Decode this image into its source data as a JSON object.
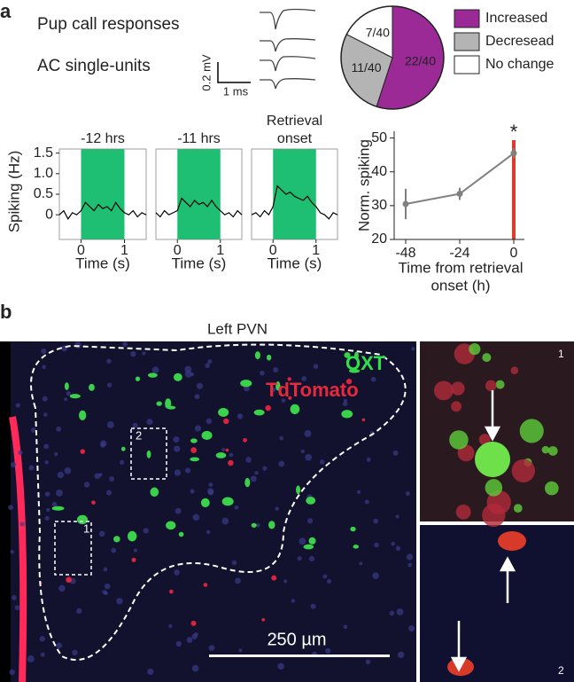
{
  "panel_a": {
    "label": "a",
    "line1": "Pup call responses",
    "line2": "AC single-units",
    "scale_y": "0.2 mV",
    "scale_x": "1 ms"
  },
  "chart_data": [
    {
      "type": "pie",
      "categories": [
        "Increased",
        "Decresead",
        "No change"
      ],
      "values": [
        22,
        11,
        7
      ],
      "value_labels": [
        "22/40",
        "11/40",
        "7/40"
      ],
      "colors": [
        "#9b2a96",
        "#b4b4b4",
        "#ffffff"
      ]
    },
    {
      "type": "line",
      "title_lines": [
        "-12 hrs"
      ],
      "ylabel": "Spiking (Hz)",
      "xlabel": "Time (s)",
      "x": [
        -0.5,
        -0.4,
        -0.3,
        -0.2,
        -0.1,
        0,
        0.1,
        0.2,
        0.3,
        0.4,
        0.5,
        0.6,
        0.7,
        0.8,
        0.9,
        1,
        1.1,
        1.2,
        1.3,
        1.4,
        1.5
      ],
      "series": [
        {
          "color": "#000000",
          "values": [
            0,
            0.1,
            -0.1,
            0.05,
            0,
            0.1,
            0.3,
            0.2,
            0.1,
            0.25,
            0.15,
            0.2,
            0.1,
            0.3,
            0.15,
            0.05,
            0,
            0.1,
            -0.05,
            0.05,
            0
          ]
        }
      ],
      "stimulus_window": [
        0,
        1
      ],
      "stimulus_color": "#1fbf73",
      "xlim": [
        -0.5,
        1.5
      ],
      "ylim": [
        -0.6,
        1.6
      ],
      "xticks": [
        0,
        1
      ],
      "yticks": [
        0,
        0.5,
        {
          "value": 1,
          "label": "1.0"
        },
        1.5
      ]
    },
    {
      "type": "line",
      "title_lines": [
        "-11 hrs"
      ],
      "xlabel": "Time (s)",
      "x": [
        -0.5,
        -0.4,
        -0.3,
        -0.2,
        -0.1,
        0,
        0.1,
        0.2,
        0.3,
        0.4,
        0.5,
        0.6,
        0.7,
        0.8,
        0.9,
        1,
        1.1,
        1.2,
        1.3,
        1.4,
        1.5
      ],
      "series": [
        {
          "color": "#000000",
          "values": [
            0.05,
            -0.05,
            0.1,
            0,
            0.05,
            0.1,
            0.4,
            0.3,
            0.2,
            0.35,
            0.25,
            0.3,
            0.2,
            0.35,
            0.2,
            0.1,
            0,
            0.05,
            -0.05,
            0.1,
            0
          ]
        }
      ],
      "stimulus_window": [
        0,
        1
      ],
      "stimulus_color": "#1fbf73",
      "xlim": [
        -0.5,
        1.5
      ],
      "ylim": [
        -0.6,
        1.6
      ],
      "xticks": [
        0,
        1
      ]
    },
    {
      "type": "line",
      "title_lines": [
        "Retrieval",
        "onset"
      ],
      "xlabel": "Time (s)",
      "x": [
        -0.5,
        -0.4,
        -0.3,
        -0.2,
        -0.1,
        0,
        0.1,
        0.2,
        0.3,
        0.4,
        0.5,
        0.6,
        0.7,
        0.8,
        0.9,
        1,
        1.1,
        1.2,
        1.3,
        1.4,
        1.5
      ],
      "series": [
        {
          "color": "#000000",
          "values": [
            0,
            0.05,
            -0.05,
            0.1,
            0,
            0.2,
            0.7,
            0.6,
            0.5,
            0.55,
            0.45,
            0.4,
            0.35,
            0.45,
            0.3,
            0.2,
            0.05,
            0,
            -0.1,
            0.05,
            0
          ]
        }
      ],
      "stimulus_window": [
        0,
        1
      ],
      "stimulus_color": "#1fbf73",
      "xlim": [
        -0.5,
        1.5
      ],
      "ylim": [
        -0.6,
        1.6
      ],
      "xticks": [
        0,
        1
      ]
    },
    {
      "type": "line",
      "ylabel": "Norm. spiking",
      "xlabel_lines": [
        "Time from retrieval",
        "onset (h)"
      ],
      "categories": [
        "-48",
        "-24",
        "0"
      ],
      "series": [
        {
          "color": "#808080",
          "values": [
            30.5,
            33.5,
            45.5
          ],
          "errors": [
            4.5,
            1.8,
            1.5
          ]
        }
      ],
      "annotation": "*",
      "highlight_color": "#e03a2b",
      "ylim": [
        20,
        52
      ],
      "yticks": [
        20,
        30,
        40,
        50
      ]
    }
  ],
  "panel_b": {
    "label": "b",
    "region": "Left PVN",
    "stain1": "OXT",
    "stain2": "TdTomato",
    "scale": "250 µm",
    "box1": "1",
    "box2": "2",
    "inset1": "1",
    "inset2": "2"
  }
}
